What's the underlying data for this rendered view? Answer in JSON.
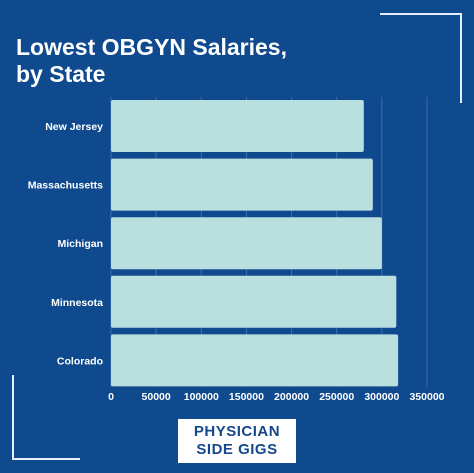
{
  "header": {
    "title_line1": "Lowest OBGYN Salaries,",
    "title_line2": "by State"
  },
  "logo": {
    "line1": "PHYSICIAN",
    "line2": "SIDE GIGS"
  },
  "colors": {
    "background": "#0f4a8f",
    "bar": "#b9dfdf",
    "text": "#ffffff",
    "logo_text": "#15488a"
  },
  "chart_data": {
    "type": "bar",
    "orientation": "horizontal",
    "categories": [
      "New Jersey",
      "Massachusetts",
      "Michigan",
      "Minnesota",
      "Colorado"
    ],
    "values": [
      280000,
      290000,
      300000,
      316000,
      318000
    ],
    "xticks": [
      0,
      50000,
      100000,
      150000,
      200000,
      250000,
      300000,
      350000
    ],
    "xlim": [
      0,
      350000
    ],
    "grid": true,
    "legend": "none"
  }
}
